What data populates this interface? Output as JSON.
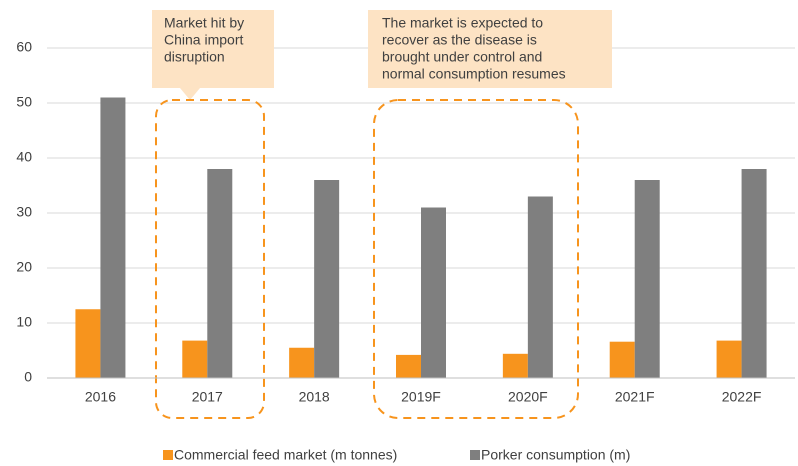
{
  "chart_data": {
    "type": "bar",
    "categories": [
      "2016",
      "2017",
      "2018",
      "2019F",
      "2020F",
      "2021F",
      "2022F"
    ],
    "series": [
      {
        "name": "Commercial feed market (m tonnes)",
        "color": "#f7941d",
        "values": [
          12.5,
          6.8,
          5.5,
          4.2,
          4.4,
          6.6,
          6.8
        ]
      },
      {
        "name": "Porker consumption (m)",
        "color": "#7f7f7f",
        "values": [
          51,
          38,
          36,
          31,
          33,
          36,
          38
        ]
      }
    ],
    "ylim": [
      0,
      60
    ],
    "yticks": [
      0,
      10,
      20,
      30,
      40,
      50,
      60
    ],
    "grid": true,
    "legend": "bottom",
    "annotations": [
      [
        "Market hit by",
        "China import",
        "disruption"
      ],
      [
        "The market is expected to",
        "recover as the disease is",
        "brought under control and",
        "normal consumption resumes"
      ]
    ]
  }
}
